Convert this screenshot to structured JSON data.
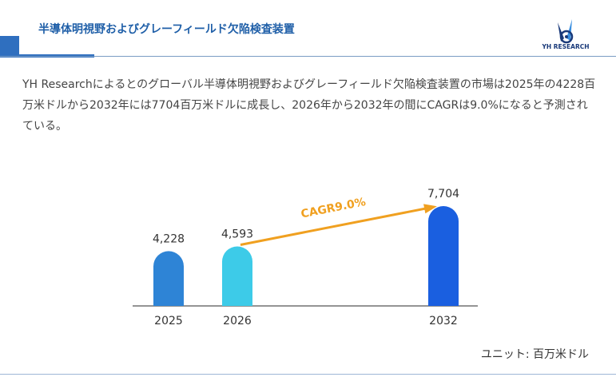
{
  "header": {
    "title": "半導体明視野およびグレーフィールド欠陥検査装置",
    "logo_text": "YH RESEARCH"
  },
  "description": "YH Researchによるとのグローバル半導体明視野およびグレーフィールド欠陥検査装置の市場は2025年の4228百万米ドルから2032年には7704百万米ドルに成長し、2026年から2032年の間にCAGRは9.0%になると予測されている。",
  "unit_label": "ユニット: 百万米ドル",
  "colors": {
    "title": "#1f5fa8",
    "accent": "#2f6fbf",
    "arrow": "#f0a020"
  },
  "chart_data": {
    "type": "bar",
    "categories": [
      "2025",
      "2026",
      "2032"
    ],
    "values": [
      4228,
      4593,
      7704
    ],
    "value_labels": [
      "4,228",
      "4,593",
      "7,704"
    ],
    "colors": [
      "#2e84d6",
      "#3dcbe8",
      "#1a5fe0"
    ],
    "annotation": "CAGR9.0%",
    "ylim": [
      0,
      7704
    ]
  }
}
